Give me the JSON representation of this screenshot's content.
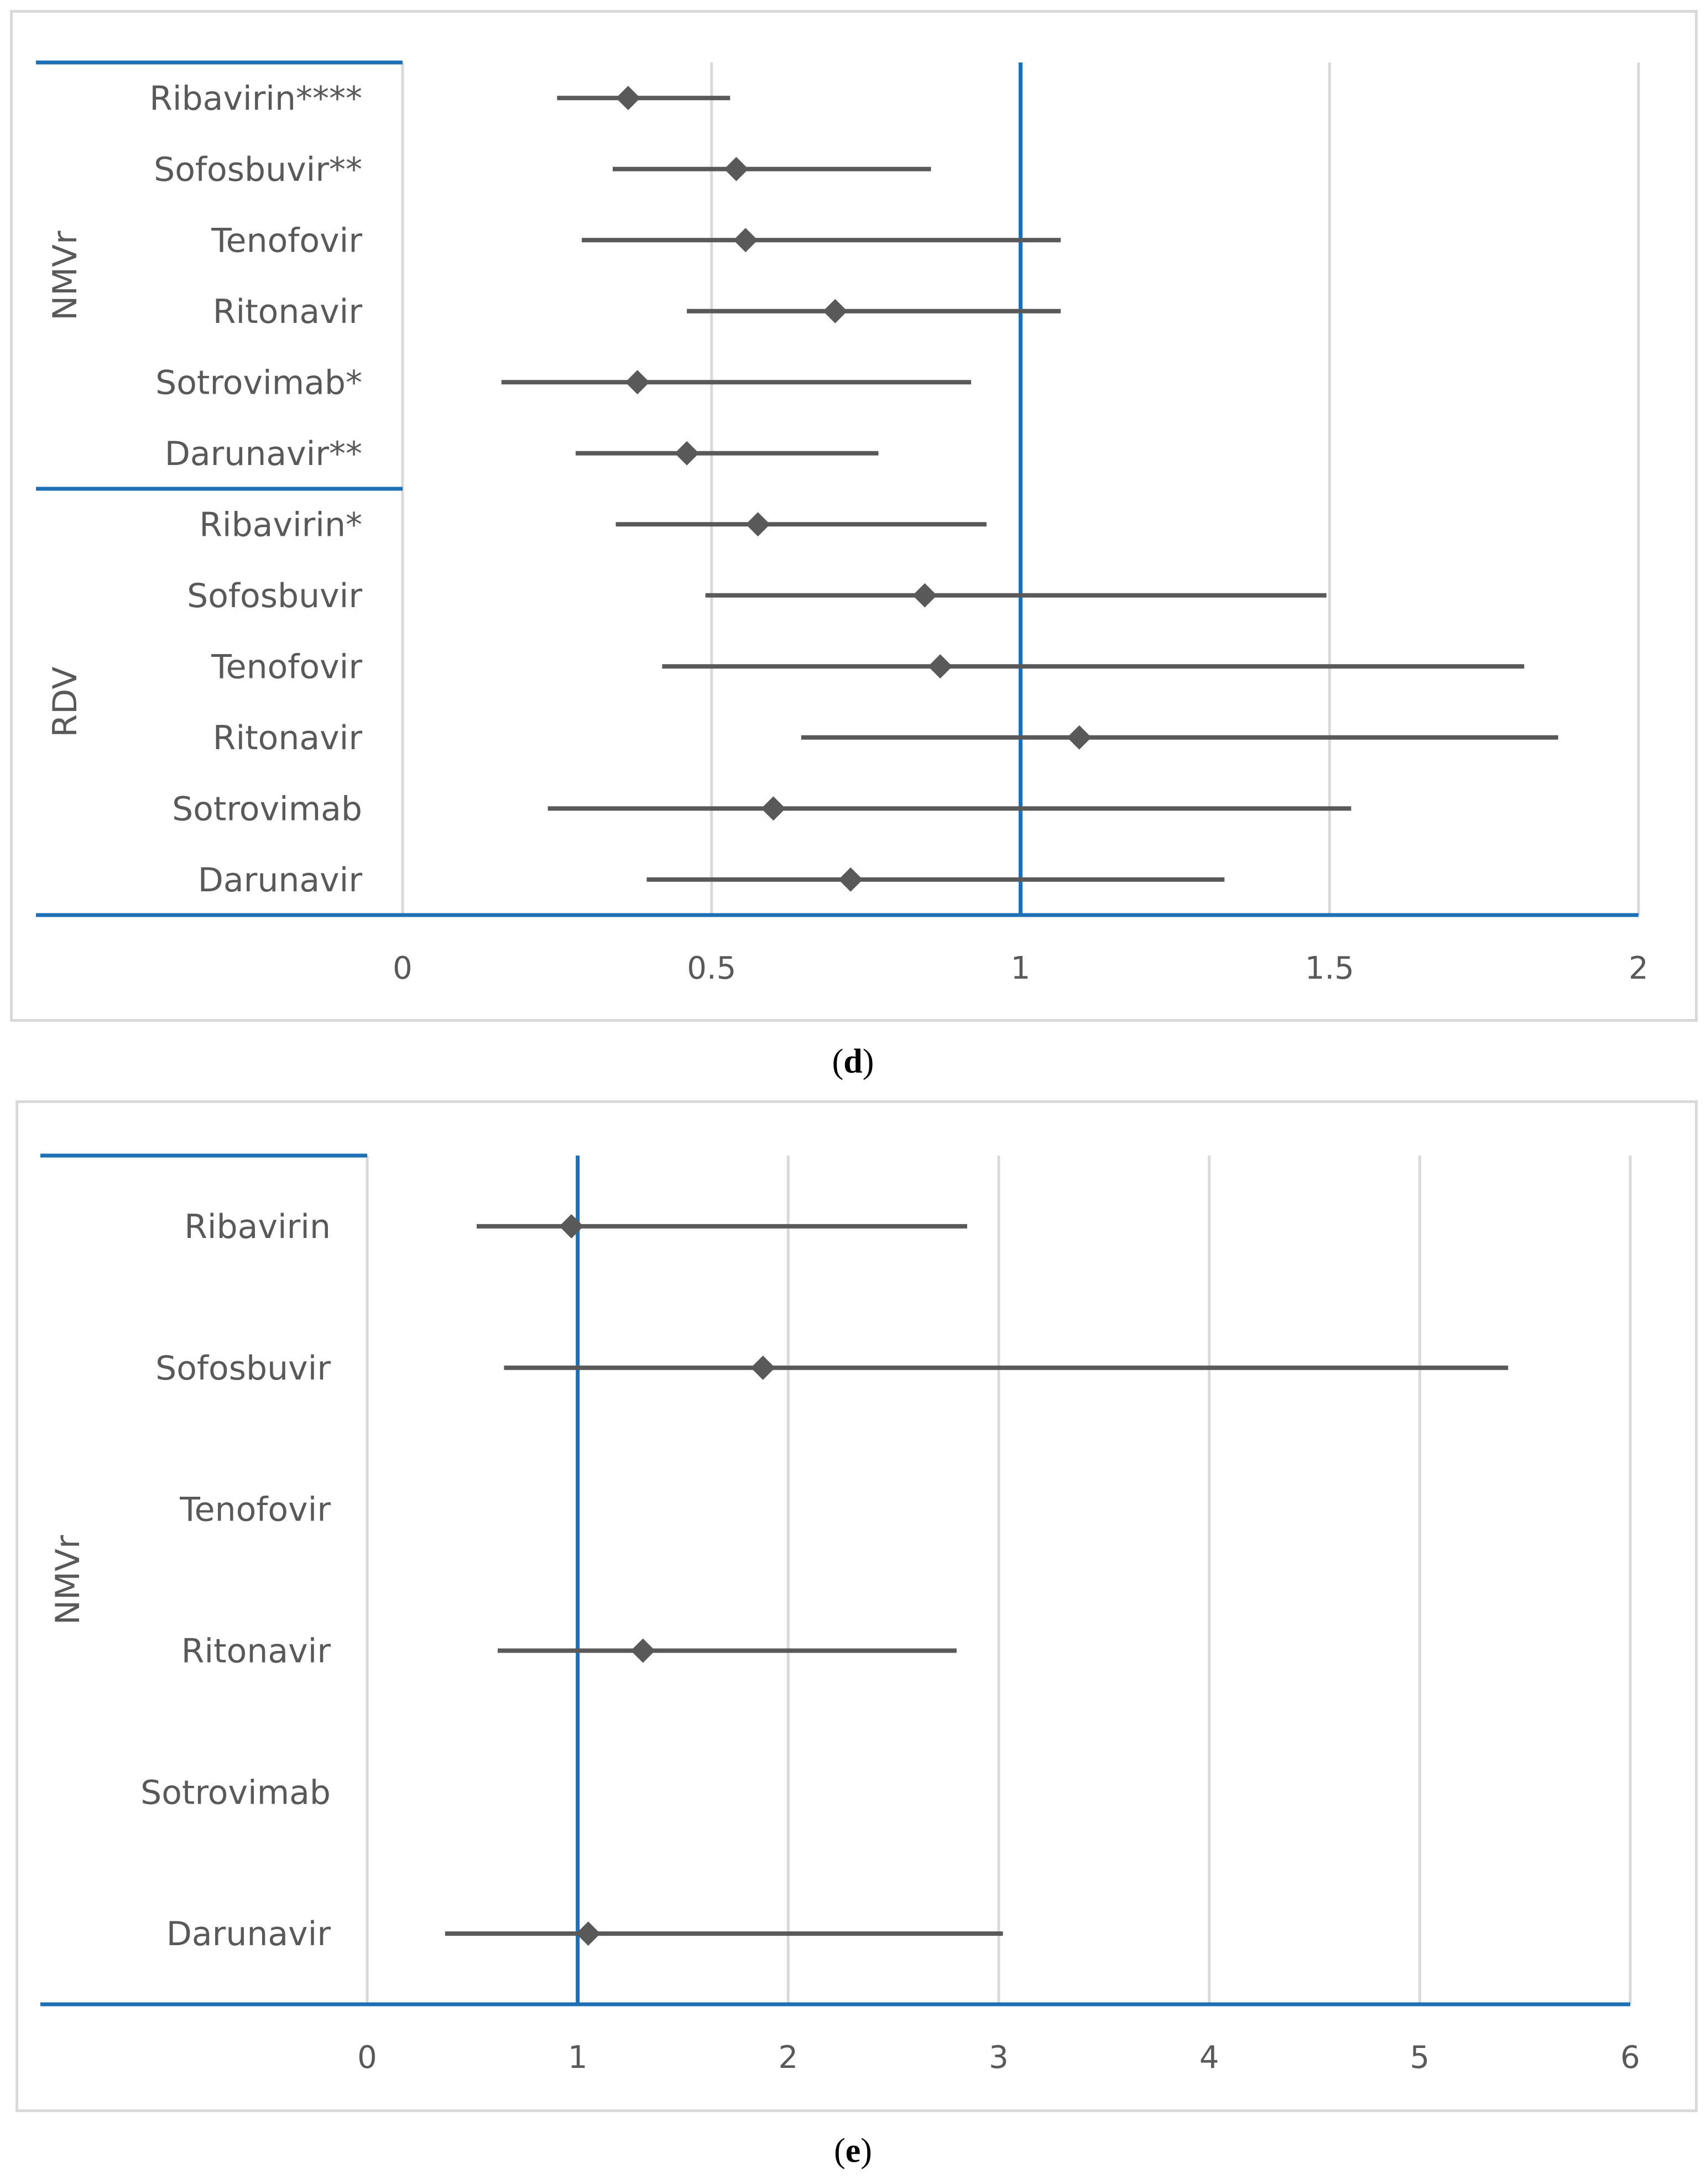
{
  "chart_data": [
    {
      "id": "d",
      "type": "scatter",
      "caption": "(d)",
      "caption_letter": "d",
      "xlim": [
        0,
        2
      ],
      "xticks": [
        "0",
        "0.5",
        "1",
        "1.5",
        "2"
      ],
      "reference_line": 1,
      "groups": [
        {
          "label": "NMVr",
          "rows": [
            {
              "label": "Ribavirin****",
              "estimate": 0.365,
              "lower": 0.25,
              "upper": 0.53
            },
            {
              "label": "Sofosbuvir**",
              "estimate": 0.54,
              "lower": 0.34,
              "upper": 0.855
            },
            {
              "label": "Tenofovir",
              "estimate": 0.555,
              "lower": 0.29,
              "upper": 1.065
            },
            {
              "label": "Ritonavir",
              "estimate": 0.7,
              "lower": 0.46,
              "upper": 1.065
            },
            {
              "label": "Sotrovimab*",
              "estimate": 0.38,
              "lower": 0.16,
              "upper": 0.92
            },
            {
              "label": "Darunavir**",
              "estimate": 0.46,
              "lower": 0.28,
              "upper": 0.77
            }
          ]
        },
        {
          "label": "RDV",
          "rows": [
            {
              "label": "Ribavirin*",
              "estimate": 0.575,
              "lower": 0.345,
              "upper": 0.945
            },
            {
              "label": "Sofosbuvir",
              "estimate": 0.845,
              "lower": 0.49,
              "upper": 1.495
            },
            {
              "label": "Tenofovir",
              "estimate": 0.87,
              "lower": 0.42,
              "upper": 1.815
            },
            {
              "label": "Ritonavir",
              "estimate": 1.095,
              "lower": 0.645,
              "upper": 1.87
            },
            {
              "label": "Sotrovimab",
              "estimate": 0.6,
              "lower": 0.235,
              "upper": 1.535
            },
            {
              "label": "Darunavir",
              "estimate": 0.725,
              "lower": 0.395,
              "upper": 1.33
            }
          ]
        }
      ]
    },
    {
      "id": "e",
      "type": "scatter",
      "caption": "(e)",
      "caption_letter": "e",
      "xlim": [
        0,
        6
      ],
      "xticks": [
        "0",
        "1",
        "2",
        "3",
        "4",
        "5",
        "6"
      ],
      "reference_line": 1,
      "groups": [
        {
          "label": "NMVr",
          "rows": [
            {
              "label": "Ribavirin",
              "estimate": 0.97,
              "lower": 0.52,
              "upper": 2.85
            },
            {
              "label": "Sofosbuvir",
              "estimate": 1.88,
              "lower": 0.65,
              "upper": 5.42
            },
            {
              "label": "Tenofovir",
              "estimate": null,
              "lower": null,
              "upper": null
            },
            {
              "label": "Ritonavir",
              "estimate": 1.31,
              "lower": 0.62,
              "upper": 2.8
            },
            {
              "label": "Sotrovimab",
              "estimate": null,
              "lower": null,
              "upper": null
            },
            {
              "label": "Darunavir",
              "estimate": 1.05,
              "lower": 0.37,
              "upper": 3.02
            }
          ]
        }
      ]
    }
  ],
  "colors": {
    "marker": "#595959",
    "ci_line": "#595959",
    "reference_line": "#1f6fb4",
    "axis_line": "#1f6fb4",
    "gridline": "#d9d9d9",
    "text": "#595959"
  }
}
